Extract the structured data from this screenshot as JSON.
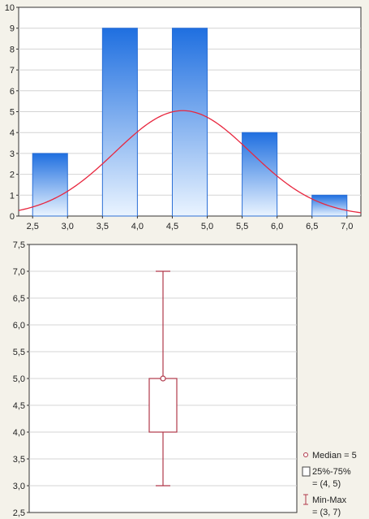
{
  "colors": {
    "bar_top": "#1f6fe0",
    "bar_bottom": "#eaf4ff",
    "bar_stroke": "#2b6fd6",
    "curve": "#e8273f",
    "box": "#b0384a",
    "grid": "#d4d4d4"
  },
  "chart_data": [
    {
      "type": "bar",
      "x_ticks": [
        "2,5",
        "3,0",
        "3,5",
        "4,0",
        "4,5",
        "5,0",
        "5,5",
        "6,0",
        "6,5",
        "7,0"
      ],
      "y_ticks": [
        "0",
        "1",
        "2",
        "3",
        "4",
        "5",
        "6",
        "7",
        "8",
        "9",
        "10"
      ],
      "xlim": [
        2.3,
        7.2
      ],
      "ylim": [
        0,
        10
      ],
      "bins": [
        {
          "from": 2.5,
          "to": 3.0,
          "count": 3
        },
        {
          "from": 3.5,
          "to": 4.0,
          "count": 9
        },
        {
          "from": 4.5,
          "to": 5.0,
          "count": 9
        },
        {
          "from": 5.5,
          "to": 6.0,
          "count": 4
        },
        {
          "from": 6.5,
          "to": 7.0,
          "count": 1
        }
      ],
      "normal_curve": {
        "mean": 4.65,
        "sd": 0.97,
        "peak": 5.05
      },
      "grid": true
    },
    {
      "type": "box",
      "y_ticks": [
        "2,5",
        "3,0",
        "3,5",
        "4,0",
        "4,5",
        "5,0",
        "5,5",
        "6,0",
        "6,5",
        "7,0",
        "7,5"
      ],
      "ylim": [
        2.5,
        7.5
      ],
      "median": 5,
      "q1": 4,
      "q3": 5,
      "min": 3,
      "max": 7,
      "grid": true,
      "legend_placement": "bottom-right",
      "legend": [
        {
          "lines": [
            "Median = 5"
          ],
          "marker": "circle"
        },
        {
          "lines": [
            "25%-75%",
            "= (4, 5)"
          ],
          "marker": "box"
        },
        {
          "lines": [
            "Min-Max",
            "= (3, 7)"
          ],
          "marker": "whisker"
        }
      ]
    }
  ]
}
